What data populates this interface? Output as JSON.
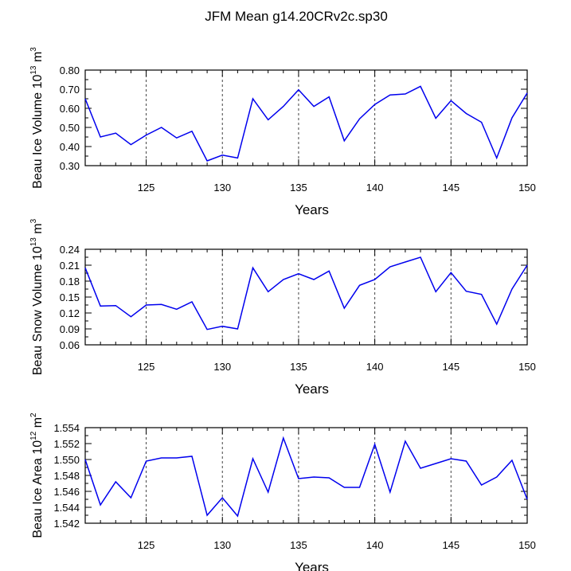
{
  "title": "JFM Mean g14.20CRv2c.sp30",
  "chart_data": [
    {
      "type": "line",
      "id": "ice-volume",
      "ylabel_main": "Beau Ice Volume 10",
      "ylabel_exp": "13",
      "ylabel_unit": " m",
      "ylabel_unit_exp": "3",
      "xlabel": "Years",
      "xlim": [
        121,
        150
      ],
      "ylim": [
        0.3,
        0.8
      ],
      "xticks": [
        "125",
        "130",
        "135",
        "140",
        "145",
        "150"
      ],
      "yticks": [
        "0.30",
        "0.40",
        "0.50",
        "0.60",
        "0.70",
        "0.80"
      ],
      "grid_x": [
        125,
        130,
        135,
        140,
        145
      ],
      "series": [
        {
          "name": "Beau Ice Volume",
          "color": "#0000ee",
          "x": [
            121,
            122,
            123,
            124,
            125,
            126,
            127,
            128,
            129,
            130,
            131,
            132,
            133,
            134,
            135,
            136,
            137,
            138,
            139,
            140,
            141,
            142,
            143,
            144,
            145,
            146,
            147,
            148,
            149,
            150
          ],
          "values": [
            0.65,
            0.45,
            0.47,
            0.41,
            0.46,
            0.5,
            0.445,
            0.48,
            0.325,
            0.355,
            0.34,
            0.65,
            0.54,
            0.61,
            0.697,
            0.61,
            0.66,
            0.43,
            0.545,
            0.62,
            0.67,
            0.675,
            0.715,
            0.548,
            0.64,
            0.573,
            0.527,
            0.34,
            0.55,
            0.68
          ]
        }
      ]
    },
    {
      "type": "line",
      "id": "snow-volume",
      "ylabel_main": "Beau Snow Volume 10",
      "ylabel_exp": "13",
      "ylabel_unit": " m",
      "ylabel_unit_exp": "3",
      "xlabel": "Years",
      "xlim": [
        121,
        150
      ],
      "ylim": [
        0.06,
        0.24
      ],
      "xticks": [
        "125",
        "130",
        "135",
        "140",
        "145",
        "150"
      ],
      "yticks": [
        "0.06",
        "0.09",
        "0.12",
        "0.15",
        "0.18",
        "0.21",
        "0.24"
      ],
      "grid_x": [
        125,
        130,
        135,
        140,
        145
      ],
      "series": [
        {
          "name": "Beau Snow Volume",
          "color": "#0000ee",
          "x": [
            121,
            122,
            123,
            124,
            125,
            126,
            127,
            128,
            129,
            130,
            131,
            132,
            133,
            134,
            135,
            136,
            137,
            138,
            139,
            140,
            141,
            142,
            143,
            144,
            145,
            146,
            147,
            148,
            149,
            150
          ],
          "values": [
            0.205,
            0.133,
            0.134,
            0.113,
            0.135,
            0.136,
            0.127,
            0.141,
            0.089,
            0.095,
            0.09,
            0.205,
            0.16,
            0.183,
            0.194,
            0.183,
            0.199,
            0.129,
            0.172,
            0.183,
            0.207,
            0.216,
            0.225,
            0.16,
            0.196,
            0.161,
            0.155,
            0.099,
            0.165,
            0.21
          ]
        }
      ]
    },
    {
      "type": "line",
      "id": "ice-area",
      "ylabel_main": "Beau Ice Area 10",
      "ylabel_exp": "12",
      "ylabel_unit": " m",
      "ylabel_unit_exp": "2",
      "xlabel": "Years",
      "xlim": [
        121,
        150
      ],
      "ylim": [
        1.542,
        1.554
      ],
      "xticks": [
        "125",
        "130",
        "135",
        "140",
        "145",
        "150"
      ],
      "yticks": [
        "1.542",
        "1.544",
        "1.546",
        "1.548",
        "1.550",
        "1.552",
        "1.554"
      ],
      "grid_x": [
        125,
        130,
        135,
        140,
        145
      ],
      "series": [
        {
          "name": "Beau Ice Area",
          "color": "#0000ee",
          "x": [
            121,
            122,
            123,
            124,
            125,
            126,
            127,
            128,
            129,
            130,
            131,
            132,
            133,
            134,
            135,
            136,
            137,
            138,
            139,
            140,
            141,
            142,
            143,
            144,
            145,
            146,
            147,
            148,
            149,
            150
          ],
          "values": [
            1.55,
            1.5443,
            1.5472,
            1.5452,
            1.5498,
            1.5502,
            1.5502,
            1.5504,
            1.543,
            1.5452,
            1.5429,
            1.5501,
            1.5459,
            1.5527,
            1.5476,
            1.5478,
            1.5477,
            1.5465,
            1.5465,
            1.5519,
            1.5459,
            1.5523,
            1.5489,
            1.5495,
            1.5501,
            1.5498,
            1.5468,
            1.5478,
            1.5499,
            1.545
          ]
        }
      ]
    }
  ]
}
